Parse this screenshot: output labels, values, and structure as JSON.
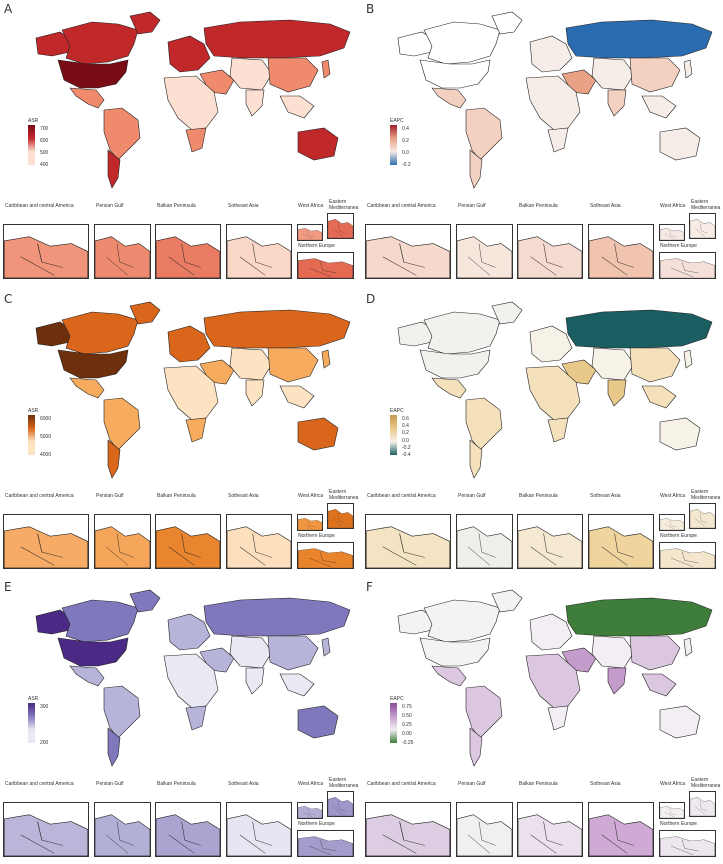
{
  "panels": [
    {
      "letter": "A",
      "legend_title": "ASR",
      "ticks": [
        "700",
        "600",
        "500",
        "400"
      ],
      "palette": {
        "low": "#fde0d2",
        "mid": "#f08a6c",
        "high": "#c0282a",
        "top": "#7a0c15",
        "bg": "#fbe9e2"
      },
      "regions": {
        "usa": "top",
        "canada": "high",
        "alaska": "high",
        "greenland": "high",
        "mexico": "mid",
        "southam": "mid",
        "argentina": "high",
        "europe": "high",
        "russia": "high",
        "asia": "low",
        "china": "mid",
        "mideast": "mid",
        "africa": "low",
        "safrica": "mid",
        "india": "low",
        "seasia": "low",
        "australia": "high",
        "japan": "mid"
      },
      "inset_fill": {
        "carib": "#f0947b",
        "persian": "#ee8a6f",
        "balkan": "#ea7c63",
        "seasia": "#fbd7c8",
        "westaf": "#f29b82",
        "eastmed": "#e56b55",
        "neurope": "#e46a51"
      }
    },
    {
      "letter": "B",
      "legend_title": "EAPC",
      "ticks": [
        "0.4",
        "0.2",
        "0.0",
        "-0.2"
      ],
      "palette": {
        "low": "#f6ece8",
        "mid": "#f3d0c0",
        "high": "#e9a285",
        "top": "#9b1c2e",
        "bg": "#ffffff"
      },
      "regions": {
        "usa": "bg",
        "canada": "bg",
        "alaska": "bg",
        "greenland": "bg",
        "mexico": "mid",
        "southam": "mid",
        "argentina": "mid",
        "europe": "low",
        "russia": "blue",
        "asia": "low",
        "china": "mid",
        "mideast": "high",
        "africa": "low",
        "safrica": "low",
        "india": "mid",
        "seasia": "low",
        "australia": "low",
        "japan": "low"
      },
      "blue": "#2b6cb0",
      "inset_fill": {
        "carib": "#f6d9cc",
        "persian": "#f7e6dc",
        "balkan": "#f5dad0",
        "seasia": "#f1c4b0",
        "westaf": "#f7e9e3",
        "eastmed": "#f7ece6",
        "neurope": "#f4e0d8"
      }
    },
    {
      "letter": "C",
      "legend_title": "ASR",
      "ticks": [
        "6000",
        "5000",
        "4000"
      ],
      "palette": {
        "low": "#fde3c2",
        "mid": "#f6ab5e",
        "high": "#d9661a",
        "top": "#6e2f0c",
        "bg": "#fbe9d6"
      },
      "regions": {
        "usa": "top",
        "canada": "high",
        "alaska": "top",
        "greenland": "high",
        "mexico": "mid",
        "southam": "mid",
        "argentina": "high",
        "europe": "high",
        "russia": "high",
        "asia": "low",
        "china": "mid",
        "mideast": "mid",
        "africa": "low",
        "safrica": "mid",
        "india": "low",
        "seasia": "low",
        "australia": "high",
        "japan": "mid"
      },
      "inset_fill": {
        "carib": "#f6ac66",
        "persian": "#f6a65a",
        "balkan": "#e8852e",
        "seasia": "#fddfbd",
        "westaf": "#f0973f",
        "eastmed": "#de731f",
        "neurope": "#e9832c"
      }
    },
    {
      "letter": "D",
      "legend_title": "EAPC",
      "ticks": [
        "0.6",
        "0.4",
        "0.2",
        "0.0",
        "-0.2",
        "-0.4"
      ],
      "palette": {
        "low": "#f7f2e8",
        "mid": "#f4e0bb",
        "high": "#e9c98a",
        "top": "#c89a50",
        "bg": "#f1f1ee"
      },
      "regions": {
        "usa": "bg",
        "canada": "bg",
        "alaska": "bg",
        "greenland": "bg",
        "mexico": "mid",
        "southam": "mid",
        "argentina": "mid",
        "europe": "low",
        "russia": "blue",
        "asia": "low",
        "china": "mid",
        "mideast": "high",
        "africa": "mid",
        "safrica": "mid",
        "india": "high",
        "seasia": "mid",
        "australia": "low",
        "japan": "low"
      },
      "blue": "#1b5e62",
      "inset_fill": {
        "carib": "#f5e4c3",
        "persian": "#efefea",
        "balkan": "#f6e9d2",
        "seasia": "#efd49e",
        "westaf": "#f5ecdc",
        "eastmed": "#f3e7d0",
        "neurope": "#f4e6cd"
      }
    },
    {
      "letter": "E",
      "legend_title": "ASR",
      "ticks": [
        "300",
        "200"
      ],
      "palette": {
        "low": "#e9e8f3",
        "mid": "#b7b4d9",
        "high": "#7f78bd",
        "top": "#4b2a86",
        "bg": "#f2f1f8"
      },
      "regions": {
        "usa": "top",
        "canada": "high",
        "alaska": "top",
        "greenland": "high",
        "mexico": "mid",
        "southam": "mid",
        "argentina": "high",
        "europe": "mid",
        "russia": "high",
        "asia": "low",
        "china": "mid",
        "mideast": "mid",
        "africa": "low",
        "safrica": "mid",
        "india": "low",
        "seasia": "low",
        "australia": "high",
        "japan": "mid"
      },
      "inset_fill": {
        "carib": "#b9b6da",
        "persian": "#b3b0d6",
        "balkan": "#a9a5d0",
        "seasia": "#e7e5f2",
        "westaf": "#b3afd5",
        "eastmed": "#9c96c9",
        "neurope": "#a29dcb"
      }
    },
    {
      "letter": "F",
      "legend_title": "EAPC",
      "ticks": [
        "0.75",
        "0.50",
        "0.25",
        "0.00",
        "-0.25"
      ],
      "palette": {
        "low": "#f3eef3",
        "mid": "#dcc7e0",
        "high": "#c49ccb",
        "top": "#8a4f9a",
        "bg": "#f3f3f3"
      },
      "regions": {
        "usa": "bg",
        "canada": "bg",
        "alaska": "bg",
        "greenland": "bg",
        "mexico": "mid",
        "southam": "mid",
        "argentina": "mid",
        "europe": "low",
        "russia": "green",
        "asia": "low",
        "china": "mid",
        "mideast": "high",
        "africa": "mid",
        "safrica": "low",
        "india": "high",
        "seasia": "mid",
        "australia": "low",
        "japan": "low"
      },
      "blue": "#3e7d3a",
      "inset_fill": {
        "carib": "#dccde2",
        "persian": "#f1f0f1",
        "balkan": "#ebe1ec",
        "seasia": "#cfaad5",
        "westaf": "#f2eef2",
        "eastmed": "#efe9ef",
        "neurope": "#eee6ee"
      }
    }
  ],
  "insets": {
    "carib": "Caribbean and central America",
    "persian": "Persian Gulf",
    "balkan": "Balkan Peninsula",
    "seasia": "Sotheast Asia",
    "westaf": "West Africa",
    "eastmed": "Eastern\nMediterranea",
    "neurope": "Northern Europe"
  }
}
